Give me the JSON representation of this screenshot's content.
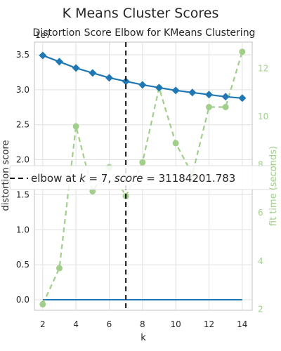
{
  "chart_data": {
    "type": "line",
    "title": "K Means Cluster Scores",
    "subtitle": "Distortion Score Elbow for KMeans Clustering",
    "xlabel": "k",
    "ylabel": "distortion score",
    "y2label": "fit time (seconds)",
    "y_offset_label": "1e7",
    "xlim": [
      1.5,
      14.6
    ],
    "ylim": [
      -0.15,
      3.68
    ],
    "y2lim": [
      1.95,
      13.1
    ],
    "x_ticks": [
      2,
      4,
      6,
      8,
      10,
      12,
      14
    ],
    "y_ticks": [
      0.0,
      0.5,
      1.0,
      1.5,
      2.0,
      2.5,
      3.0,
      3.5
    ],
    "y2_ticks": [
      2,
      4,
      6,
      8,
      10,
      12
    ],
    "grid": true,
    "series": [
      {
        "name": "distortion score",
        "axis": "left",
        "color": "#1f77b4",
        "x": [
          2,
          3,
          4,
          5,
          6,
          7,
          8,
          9,
          10,
          11,
          12,
          13,
          14
        ],
        "values": [
          3.49,
          3.4,
          3.31,
          3.24,
          3.17,
          3.12,
          3.07,
          3.03,
          2.99,
          2.96,
          2.93,
          2.9,
          2.88
        ]
      },
      {
        "name": "fit time (seconds)",
        "axis": "right",
        "color": "#a1cf8b",
        "x": [
          2,
          3,
          4,
          5,
          6,
          7,
          8,
          9,
          10,
          11,
          12,
          13,
          14
        ],
        "values": [
          2.2,
          3.7,
          9.6,
          6.9,
          7.9,
          6.7,
          8.1,
          11.2,
          8.9,
          7.6,
          10.4,
          10.4,
          12.7
        ]
      },
      {
        "name": "",
        "axis": "left",
        "color": "#1f77b4",
        "x": [
          2,
          3,
          4,
          5,
          6,
          7,
          8,
          9,
          10,
          11,
          12,
          13,
          14
        ],
        "values": [
          0.0,
          0.0,
          0.0,
          0.0,
          0.0,
          0.0,
          0.0,
          0.0,
          0.0,
          0.0,
          0.0,
          0.0,
          0.0
        ]
      }
    ],
    "elbow": {
      "k": 7,
      "label": "elbow at $k=7$, $score=31184201.783$",
      "label_parts": [
        "elbow at ",
        "k",
        " = 7, ",
        "score",
        " = 31184201.783"
      ]
    }
  }
}
